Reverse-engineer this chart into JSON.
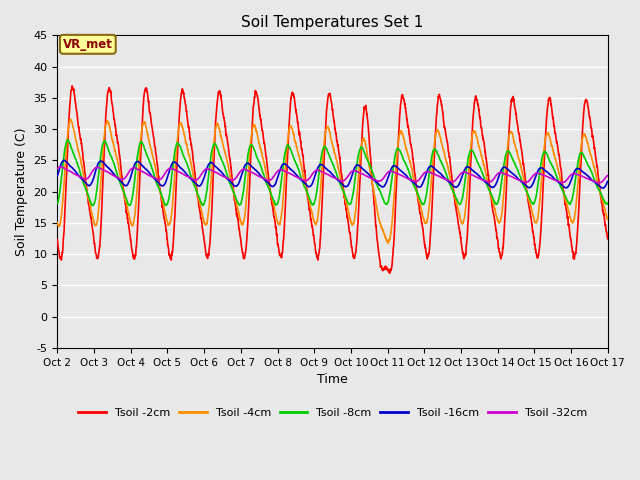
{
  "title": "Soil Temperatures Set 1",
  "xlabel": "Time",
  "ylabel": "Soil Temperature (C)",
  "ylim": [
    -5,
    45
  ],
  "xlim": [
    0,
    15
  ],
  "bg_color": "#e8e8e8",
  "plot_bg_color": "#e8e8e8",
  "grid_color": "white",
  "annotation_text": "VR_met",
  "annotation_box_color": "#ffff99",
  "annotation_border_color": "#8B6914",
  "series": [
    {
      "label": "Tsoil -2cm",
      "color": "#ff0000",
      "lw": 1.2
    },
    {
      "label": "Tsoil -4cm",
      "color": "#ff8c00",
      "lw": 1.2
    },
    {
      "label": "Tsoil -8cm",
      "color": "#00cc00",
      "lw": 1.2
    },
    {
      "label": "Tsoil -16cm",
      "color": "#0000cc",
      "lw": 1.2
    },
    {
      "label": "Tsoil -32cm",
      "color": "#cc00cc",
      "lw": 1.2
    }
  ],
  "xtick_labels": [
    "Oct 2",
    "Oct 3",
    "Oct 4",
    "Oct 5",
    "Oct 6",
    "Oct 7",
    "Oct 8",
    "Oct 9",
    "Oct 10",
    "Oct 11",
    "Oct 12",
    "Oct 13",
    "Oct 14",
    "Oct 15",
    "Oct 16",
    "Oct 17"
  ],
  "xtick_positions": [
    0,
    1,
    2,
    3,
    4,
    5,
    6,
    7,
    8,
    9,
    10,
    11,
    12,
    13,
    14,
    15
  ],
  "ytick_positions": [
    -5,
    0,
    5,
    10,
    15,
    20,
    25,
    30,
    35,
    40,
    45
  ],
  "ytick_labels": [
    "-5",
    "0",
    "5",
    "10",
    "15",
    "20",
    "25",
    "30",
    "35",
    "40",
    "45"
  ]
}
